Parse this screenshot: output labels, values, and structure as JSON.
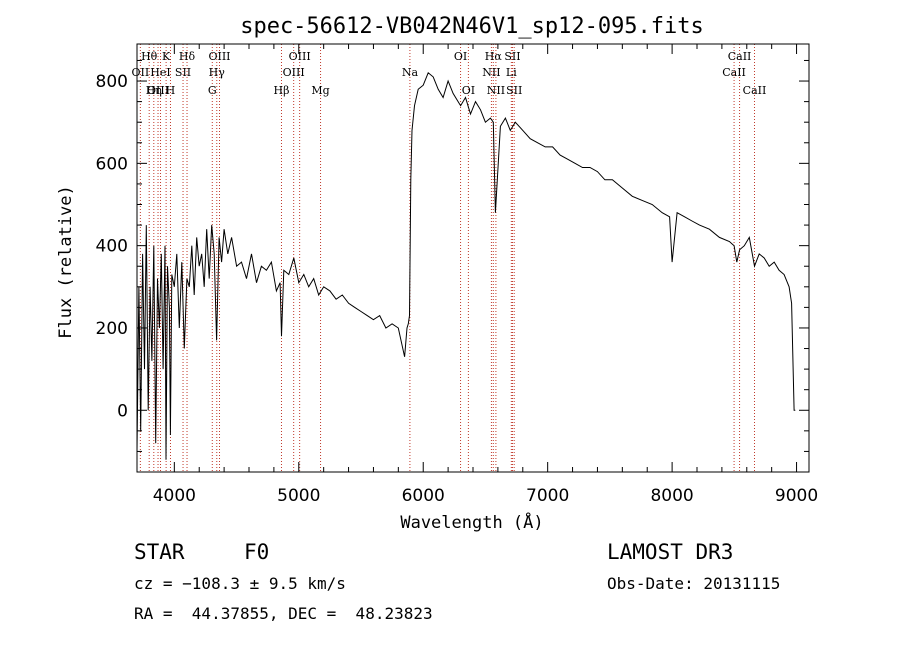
{
  "footer": {
    "object_class": "STAR",
    "subclass": "F0",
    "survey": "LAMOST DR3",
    "redshift": "cz = −108.3 ± 9.5 km/s",
    "obs_date": "Obs-Date: 20131115",
    "coords": "RA =  44.37855, DEC =  48.23823"
  },
  "chart_data": {
    "type": "line",
    "title": "spec-56612-VB042N46V1_sp12-095.fits",
    "xlabel": "Wavelength (Å)",
    "ylabel": "Flux (relative)",
    "xlim": [
      3700,
      9100
    ],
    "ylim": [
      -150,
      890
    ],
    "xticks": [
      4000,
      5000,
      6000,
      7000,
      8000,
      9000
    ],
    "yticks": [
      0,
      200,
      400,
      600,
      800
    ],
    "line_color": "#000000",
    "marker_color": "#c0392b",
    "series": [
      {
        "name": "spectrum",
        "x": [
          3700,
          3715,
          3730,
          3745,
          3760,
          3775,
          3790,
          3805,
          3820,
          3835,
          3850,
          3865,
          3880,
          3895,
          3910,
          3925,
          3933,
          3945,
          3960,
          3968,
          3980,
          4000,
          4020,
          4040,
          4060,
          4080,
          4101,
          4120,
          4140,
          4160,
          4180,
          4200,
          4220,
          4240,
          4260,
          4280,
          4300,
          4320,
          4340,
          4360,
          4380,
          4400,
          4430,
          4460,
          4500,
          4540,
          4580,
          4620,
          4660,
          4700,
          4740,
          4780,
          4820,
          4850,
          4861,
          4880,
          4920,
          4960,
          5000,
          5040,
          5080,
          5120,
          5160,
          5200,
          5250,
          5300,
          5350,
          5400,
          5450,
          5500,
          5550,
          5600,
          5650,
          5700,
          5750,
          5800,
          5850,
          5870,
          5880,
          5890,
          5900,
          5910,
          5930,
          5960,
          6000,
          6040,
          6080,
          6120,
          6160,
          6200,
          6240,
          6280,
          6300,
          6340,
          6380,
          6420,
          6460,
          6500,
          6540,
          6563,
          6580,
          6620,
          6660,
          6700,
          6740,
          6800,
          6860,
          6920,
          6980,
          7040,
          7100,
          7160,
          7220,
          7280,
          7340,
          7400,
          7460,
          7520,
          7600,
          7680,
          7760,
          7840,
          7920,
          7980,
          8000,
          8040,
          8100,
          8160,
          8220,
          8300,
          8380,
          8460,
          8498,
          8520,
          8542,
          8580,
          8620,
          8662,
          8700,
          8740,
          8780,
          8820,
          8860,
          8900,
          8940,
          8960,
          8980,
          8990
        ],
        "y": [
          -100,
          300,
          -50,
          380,
          100,
          450,
          0,
          300,
          120,
          400,
          -80,
          320,
          200,
          380,
          100,
          400,
          -120,
          350,
          250,
          -60,
          330,
          300,
          380,
          200,
          360,
          150,
          320,
          300,
          400,
          280,
          420,
          350,
          380,
          300,
          440,
          320,
          450,
          380,
          170,
          420,
          360,
          440,
          380,
          420,
          350,
          360,
          320,
          380,
          310,
          350,
          340,
          360,
          290,
          310,
          180,
          340,
          330,
          370,
          310,
          330,
          300,
          320,
          280,
          300,
          290,
          270,
          280,
          260,
          250,
          240,
          230,
          220,
          230,
          200,
          210,
          200,
          130,
          200,
          210,
          230,
          560,
          680,
          740,
          780,
          790,
          820,
          810,
          780,
          760,
          800,
          770,
          750,
          740,
          760,
          720,
          750,
          730,
          700,
          710,
          700,
          480,
          690,
          710,
          680,
          700,
          680,
          660,
          650,
          640,
          640,
          620,
          610,
          600,
          590,
          590,
          580,
          560,
          560,
          540,
          520,
          510,
          500,
          480,
          470,
          360,
          480,
          470,
          460,
          450,
          440,
          420,
          410,
          400,
          360,
          390,
          400,
          420,
          350,
          380,
          370,
          350,
          360,
          340,
          330,
          300,
          260,
          0,
          0
        ]
      }
    ],
    "spectral_lines": [
      {
        "name": "Hθ",
        "wavelength": 3798,
        "row": 1
      },
      {
        "name": "OII",
        "wavelength": 3727,
        "row": 2
      },
      {
        "name": "OIII",
        "wavelength": 3869,
        "row": 3
      },
      {
        "name": "K",
        "wavelength": 3934,
        "row": 1
      },
      {
        "name": "HeI",
        "wavelength": 3889,
        "row": 2
      },
      {
        "name": "Hη",
        "wavelength": 3835,
        "row": 3
      },
      {
        "name": "Hδ",
        "wavelength": 4102,
        "row": 1
      },
      {
        "name": "SII",
        "wavelength": 4070,
        "row": 2
      },
      {
        "name": "H",
        "wavelength": 3969,
        "row": 3
      },
      {
        "name": "OIII",
        "wavelength": 4363,
        "row": 1
      },
      {
        "name": "Hγ",
        "wavelength": 4341,
        "row": 2
      },
      {
        "name": "G",
        "wavelength": 4305,
        "row": 3
      },
      {
        "name": "OIII",
        "wavelength": 5007,
        "row": 1
      },
      {
        "name": "OIII",
        "wavelength": 4959,
        "row": 2
      },
      {
        "name": "Hβ",
        "wavelength": 4861,
        "row": 3
      },
      {
        "name": "Mg",
        "wavelength": 5175,
        "row": 3
      },
      {
        "name": "Na",
        "wavelength": 5893,
        "row": 2
      },
      {
        "name": "OI",
        "wavelength": 6300,
        "row": 1
      },
      {
        "name": "OI",
        "wavelength": 6363,
        "row": 3
      },
      {
        "name": "Hα",
        "wavelength": 6563,
        "row": 1
      },
      {
        "name": "NII",
        "wavelength": 6548,
        "row": 2
      },
      {
        "name": "NII",
        "wavelength": 6584,
        "row": 3
      },
      {
        "name": "SII",
        "wavelength": 6717,
        "row": 1
      },
      {
        "name": "Li",
        "wavelength": 6708,
        "row": 2
      },
      {
        "name": "SII",
        "wavelength": 6731,
        "row": 3
      },
      {
        "name": "CaII",
        "wavelength": 8542,
        "row": 1
      },
      {
        "name": "CaII",
        "wavelength": 8498,
        "row": 2
      },
      {
        "name": "CaII",
        "wavelength": 8662,
        "row": 3
      }
    ]
  }
}
